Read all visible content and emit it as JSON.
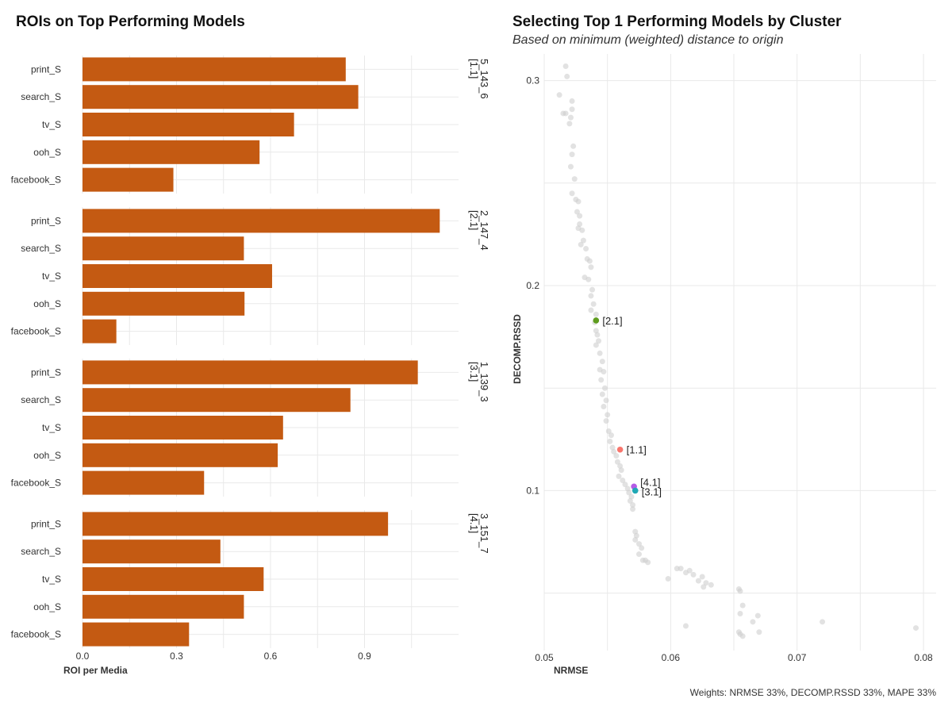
{
  "left_title": "ROIs on Top Performing Models",
  "right_title": "Selecting Top 1 Performing Models by Cluster",
  "right_subtitle": "Based on minimum (weighted) distance to origin",
  "caption": "Weights: NRMSE 33%, DECOMP.RSSD 33%, MAPE 33%",
  "colors": {
    "bar": "#C45A12",
    "grid": "#e9e9e9",
    "bg_point": "#cfcfcf"
  },
  "chart_data": [
    {
      "type": "bar",
      "orientation": "horizontal",
      "title": "ROIs on Top Performing Models",
      "xlabel": "ROI per Media",
      "ylabel": "",
      "xlim": [
        0,
        1.2
      ],
      "xticks": [
        0.0,
        0.3,
        0.6,
        0.9
      ],
      "xtick_labels": [
        "0.0",
        "0.3",
        "0.6",
        "0.9"
      ],
      "categories": [
        "print_S",
        "search_S",
        "tv_S",
        "ooh_S",
        "facebook_S"
      ],
      "facets": [
        {
          "label_line1": "[1.1]",
          "label_line2": "5_143_6",
          "values": [
            0.84,
            0.88,
            0.675,
            0.565,
            0.29
          ]
        },
        {
          "label_line1": "[2.1]",
          "label_line2": "2_147_4",
          "values": [
            1.14,
            0.515,
            0.605,
            0.517,
            0.108
          ]
        },
        {
          "label_line1": "[3.1]",
          "label_line2": "1_139_3",
          "values": [
            1.07,
            0.855,
            0.64,
            0.623,
            0.388
          ]
        },
        {
          "label_line1": "[4.1]",
          "label_line2": "3_151_7",
          "values": [
            0.975,
            0.44,
            0.578,
            0.515,
            0.34
          ]
        }
      ]
    },
    {
      "type": "scatter",
      "title": "Selecting Top 1 Performing Models by Cluster",
      "subtitle": "Based on minimum (weighted) distance to origin",
      "xlabel": "NRMSE",
      "ylabel": "DECOMP.RSSD",
      "xlim": [
        0.05,
        0.081
      ],
      "ylim": [
        0.022,
        0.313
      ],
      "xticks": [
        0.05,
        0.06,
        0.07,
        0.08
      ],
      "xtick_labels": [
        "0.05",
        "0.06",
        "0.07",
        "0.08"
      ],
      "yticks": [
        0.1,
        0.2,
        0.3
      ],
      "ytick_labels": [
        "0.1",
        "0.2",
        "0.3"
      ],
      "highlighted": [
        {
          "label": "[2.1]",
          "x": 0.0541,
          "y": 0.183,
          "color": "#5E9C1E"
        },
        {
          "label": "[1.1]",
          "x": 0.056,
          "y": 0.12,
          "color": "#F8766D"
        },
        {
          "label": "[4.1]",
          "x": 0.0571,
          "y": 0.102,
          "color": "#B45CE6"
        },
        {
          "label": "[3.1]",
          "x": 0.0572,
          "y": 0.1,
          "color": "#1FA8B5"
        }
      ],
      "points": [
        [
          0.0517,
          0.307
        ],
        [
          0.0518,
          0.302
        ],
        [
          0.0512,
          0.293
        ],
        [
          0.0515,
          0.284
        ],
        [
          0.0522,
          0.286
        ],
        [
          0.0521,
          0.282
        ],
        [
          0.052,
          0.279
        ],
        [
          0.0517,
          0.284
        ],
        [
          0.0522,
          0.29
        ],
        [
          0.0523,
          0.268
        ],
        [
          0.0522,
          0.264
        ],
        [
          0.0521,
          0.258
        ],
        [
          0.0524,
          0.252
        ],
        [
          0.0522,
          0.245
        ],
        [
          0.0525,
          0.242
        ],
        [
          0.0527,
          0.241
        ],
        [
          0.0526,
          0.236
        ],
        [
          0.0528,
          0.234
        ],
        [
          0.0528,
          0.23
        ],
        [
          0.0527,
          0.228
        ],
        [
          0.053,
          0.227
        ],
        [
          0.0531,
          0.222
        ],
        [
          0.0529,
          0.22
        ],
        [
          0.0533,
          0.218
        ],
        [
          0.0534,
          0.213
        ],
        [
          0.0536,
          0.212
        ],
        [
          0.0537,
          0.209
        ],
        [
          0.0532,
          0.204
        ],
        [
          0.0535,
          0.203
        ],
        [
          0.0538,
          0.198
        ],
        [
          0.0537,
          0.195
        ],
        [
          0.0539,
          0.191
        ],
        [
          0.0537,
          0.188
        ],
        [
          0.0541,
          0.186
        ],
        [
          0.054,
          0.182
        ],
        [
          0.0541,
          0.178
        ],
        [
          0.0542,
          0.176
        ],
        [
          0.0543,
          0.173
        ],
        [
          0.0541,
          0.171
        ],
        [
          0.0544,
          0.167
        ],
        [
          0.0546,
          0.163
        ],
        [
          0.0544,
          0.159
        ],
        [
          0.0547,
          0.158
        ],
        [
          0.0545,
          0.154
        ],
        [
          0.0548,
          0.15
        ],
        [
          0.0546,
          0.147
        ],
        [
          0.0549,
          0.144
        ],
        [
          0.0547,
          0.141
        ],
        [
          0.055,
          0.137
        ],
        [
          0.0549,
          0.134
        ],
        [
          0.0551,
          0.129
        ],
        [
          0.0553,
          0.127
        ],
        [
          0.0552,
          0.124
        ],
        [
          0.0554,
          0.121
        ],
        [
          0.0555,
          0.119
        ],
        [
          0.0557,
          0.117
        ],
        [
          0.0558,
          0.114
        ],
        [
          0.056,
          0.112
        ],
        [
          0.0561,
          0.11
        ],
        [
          0.0559,
          0.107
        ],
        [
          0.0562,
          0.105
        ],
        [
          0.0564,
          0.103
        ],
        [
          0.0566,
          0.101
        ],
        [
          0.0567,
          0.099
        ],
        [
          0.0569,
          0.097
        ],
        [
          0.0568,
          0.095
        ],
        [
          0.057,
          0.093
        ],
        [
          0.057,
          0.091
        ],
        [
          0.0572,
          0.08
        ],
        [
          0.0573,
          0.078
        ],
        [
          0.0572,
          0.076
        ],
        [
          0.0575,
          0.074
        ],
        [
          0.0577,
          0.072
        ],
        [
          0.0575,
          0.069
        ],
        [
          0.0578,
          0.066
        ],
        [
          0.058,
          0.066
        ],
        [
          0.0582,
          0.065
        ],
        [
          0.0598,
          0.057
        ],
        [
          0.0605,
          0.062
        ],
        [
          0.0608,
          0.062
        ],
        [
          0.0612,
          0.06
        ],
        [
          0.0615,
          0.061
        ],
        [
          0.0618,
          0.059
        ],
        [
          0.0622,
          0.056
        ],
        [
          0.0625,
          0.058
        ],
        [
          0.0628,
          0.055
        ],
        [
          0.0626,
          0.053
        ],
        [
          0.0632,
          0.054
        ],
        [
          0.0654,
          0.052
        ],
        [
          0.0655,
          0.051
        ],
        [
          0.0657,
          0.044
        ],
        [
          0.0655,
          0.04
        ],
        [
          0.0665,
          0.036
        ],
        [
          0.0669,
          0.039
        ],
        [
          0.0612,
          0.034
        ],
        [
          0.0655,
          0.03
        ],
        [
          0.0657,
          0.029
        ],
        [
          0.0654,
          0.031
        ],
        [
          0.067,
          0.031
        ],
        [
          0.072,
          0.036
        ],
        [
          0.0794,
          0.033
        ]
      ]
    }
  ]
}
